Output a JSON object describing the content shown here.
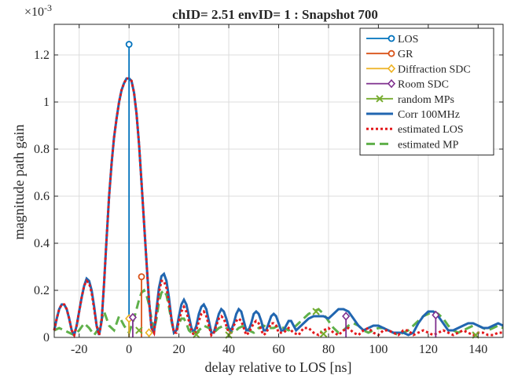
{
  "chart_data": {
    "type": "line",
    "title": "chID= 2.51 envID= 1 : Snapshot 700",
    "xlabel": "delay relative to LOS [ns]",
    "ylabel": "magnitude path gain",
    "y_exponent_label": "×10",
    "y_exponent_power": "-3",
    "xlim": [
      -30,
      150
    ],
    "ylim": [
      0,
      0.00133
    ],
    "grid": true,
    "legend_position": "top-right",
    "xticks": [
      -20,
      0,
      20,
      40,
      60,
      80,
      100,
      120,
      140
    ],
    "xtick_labels": [
      "-20",
      "0",
      "20",
      "40",
      "60",
      "80",
      "100",
      "120",
      "140"
    ],
    "yticks": [
      0,
      0.0002,
      0.0004,
      0.0006,
      0.0008,
      0.001,
      0.0012
    ],
    "ytick_labels": [
      "0",
      "0.2",
      "0.4",
      "0.6",
      "0.8",
      "1",
      "1.2"
    ],
    "colors": {
      "los": "#0072BD",
      "gr": "#D95319",
      "diffraction": "#EDB120",
      "room": "#7E2F8E",
      "random": "#77AC30",
      "corr": "#2166b0",
      "est_los": "#e3191c",
      "est_mp": "#5fb04a"
    },
    "legend": [
      {
        "key": "los",
        "label": "LOS",
        "style": "stem-o"
      },
      {
        "key": "gr",
        "label": "GR",
        "style": "stem-o"
      },
      {
        "key": "diffraction",
        "label": "Diffraction SDC",
        "style": "stem-diamond"
      },
      {
        "key": "room",
        "label": "Room SDC",
        "style": "stem-diamond"
      },
      {
        "key": "random",
        "label": "random MPs",
        "style": "x"
      },
      {
        "key": "corr",
        "label": "Corr 100MHz",
        "style": "solid"
      },
      {
        "key": "est_los",
        "label": "estimated LOS",
        "style": "dotted"
      },
      {
        "key": "est_mp",
        "label": "estimated MP",
        "style": "dashed"
      }
    ],
    "stems": [
      {
        "series": "los",
        "marker": "o",
        "x": 0,
        "y": 0.001245
      },
      {
        "series": "gr",
        "marker": "o",
        "x": 5,
        "y": 0.000258
      },
      {
        "series": "diffraction",
        "marker": "diamond",
        "x": 0,
        "y": 8e-05
      },
      {
        "series": "diffraction",
        "marker": "diamond",
        "x": 8,
        "y": 2e-05
      },
      {
        "series": "room",
        "marker": "diamond",
        "x": 1.5,
        "y": 8.5e-05
      },
      {
        "series": "room",
        "marker": "diamond",
        "x": 87,
        "y": 9e-05
      },
      {
        "series": "room",
        "marker": "diamond",
        "x": 123,
        "y": 9.5e-05
      }
    ],
    "random_mps": [
      {
        "x": 4,
        "y": 3e-05
      },
      {
        "x": 27,
        "y": 1.2e-05
      },
      {
        "x": 40,
        "y": 1e-05
      },
      {
        "x": 75,
        "y": 0.00011
      },
      {
        "x": 78,
        "y": 1.5e-05
      },
      {
        "x": 139,
        "y": 1e-05
      }
    ],
    "corr_curve": [
      [
        -30,
        3e-05
      ],
      [
        -29,
        8e-05
      ],
      [
        -28,
        0.00012
      ],
      [
        -27,
        0.00014
      ],
      [
        -26,
        0.00014
      ],
      [
        -25,
        0.00012
      ],
      [
        -24,
        8e-05
      ],
      [
        -23,
        3e-05
      ],
      [
        -22,
        1e-05
      ],
      [
        -21,
        5e-05
      ],
      [
        -20,
        0.00011
      ],
      [
        -19,
        0.00017
      ],
      [
        -18,
        0.00022
      ],
      [
        -17,
        0.00025
      ],
      [
        -16,
        0.00024
      ],
      [
        -15,
        0.0002
      ],
      [
        -14,
        0.00013
      ],
      [
        -13,
        5e-05
      ],
      [
        -12,
        1e-05
      ],
      [
        -11,
        7e-05
      ],
      [
        -10,
        0.00023
      ],
      [
        -9,
        0.00042
      ],
      [
        -8,
        0.0006
      ],
      [
        -7,
        0.00074
      ],
      [
        -6,
        0.00085
      ],
      [
        -5,
        0.00093
      ],
      [
        -4,
        0.001
      ],
      [
        -3,
        0.00105
      ],
      [
        -2,
        0.00108
      ],
      [
        -1,
        0.0011
      ],
      [
        0,
        0.0011
      ],
      [
        1,
        0.00109
      ],
      [
        2,
        0.00104
      ],
      [
        3,
        0.00095
      ],
      [
        4,
        0.00082
      ],
      [
        5,
        0.00066
      ],
      [
        6,
        0.00049
      ],
      [
        7,
        0.00032
      ],
      [
        8,
        0.00016
      ],
      [
        9,
        4e-05
      ],
      [
        10,
        2e-05
      ],
      [
        11,
        0.00012
      ],
      [
        12,
        0.00021
      ],
      [
        13,
        0.00026
      ],
      [
        14,
        0.00027
      ],
      [
        15,
        0.00024
      ],
      [
        16,
        0.00017
      ],
      [
        17,
        8e-05
      ],
      [
        18,
        2e-05
      ],
      [
        19,
        3e-05
      ],
      [
        20,
        9e-05
      ],
      [
        21,
        0.00014
      ],
      [
        22,
        0.00016
      ],
      [
        23,
        0.00014
      ],
      [
        24,
        9e-05
      ],
      [
        25,
        4e-05
      ],
      [
        26,
        2e-05
      ],
      [
        27,
        5e-05
      ],
      [
        28,
        0.0001
      ],
      [
        29,
        0.00013
      ],
      [
        30,
        0.00014
      ],
      [
        31,
        0.00012
      ],
      [
        32,
        7e-05
      ],
      [
        33,
        2e-05
      ],
      [
        34,
        2e-05
      ],
      [
        35,
        6e-05
      ],
      [
        36,
        0.0001
      ],
      [
        37,
        0.00012
      ],
      [
        38,
        0.00011
      ],
      [
        39,
        8e-05
      ],
      [
        40,
        4e-05
      ],
      [
        41,
        3e-05
      ],
      [
        42,
        6e-05
      ],
      [
        43,
        0.0001
      ],
      [
        44,
        0.00012
      ],
      [
        45,
        0.00011
      ],
      [
        46,
        7e-05
      ],
      [
        47,
        3e-05
      ],
      [
        48,
        3e-05
      ],
      [
        49,
        6e-05
      ],
      [
        50,
        0.0001
      ],
      [
        51,
        0.00011
      ],
      [
        52,
        0.0001
      ],
      [
        53,
        7e-05
      ],
      [
        54,
        3e-05
      ],
      [
        55,
        3e-05
      ],
      [
        56,
        6e-05
      ],
      [
        57,
        9e-05
      ],
      [
        58,
        0.0001
      ],
      [
        59,
        9e-05
      ],
      [
        60,
        6e-05
      ],
      [
        61,
        3e-05
      ],
      [
        62,
        3e-05
      ],
      [
        63,
        5e-05
      ],
      [
        64,
        7e-05
      ],
      [
        65,
        7e-05
      ],
      [
        66,
        5e-05
      ],
      [
        67,
        3e-05
      ],
      [
        68,
        4e-05
      ],
      [
        70,
        6e-05
      ],
      [
        72,
        8e-05
      ],
      [
        74,
        9e-05
      ],
      [
        76,
        9e-05
      ],
      [
        78,
        9e-05
      ],
      [
        80,
        8e-05
      ],
      [
        82,
        0.0001
      ],
      [
        84,
        0.00012
      ],
      [
        86,
        0.00012
      ],
      [
        88,
        0.00011
      ],
      [
        90,
        8e-05
      ],
      [
        92,
        5e-05
      ],
      [
        94,
        3e-05
      ],
      [
        96,
        4e-05
      ],
      [
        98,
        5e-05
      ],
      [
        100,
        5e-05
      ],
      [
        102,
        4e-05
      ],
      [
        104,
        3e-05
      ],
      [
        106,
        2e-05
      ],
      [
        108,
        2e-05
      ],
      [
        110,
        2e-05
      ],
      [
        112,
        1e-05
      ],
      [
        114,
        2e-05
      ],
      [
        116,
        6e-05
      ],
      [
        118,
        9e-05
      ],
      [
        120,
        0.00011
      ],
      [
        122,
        0.00011
      ],
      [
        124,
        9e-05
      ],
      [
        126,
        6e-05
      ],
      [
        128,
        3e-05
      ],
      [
        130,
        3e-05
      ],
      [
        132,
        4e-05
      ],
      [
        134,
        5e-05
      ],
      [
        136,
        6e-05
      ],
      [
        138,
        6e-05
      ],
      [
        140,
        5e-05
      ],
      [
        142,
        4e-05
      ],
      [
        144,
        4e-05
      ],
      [
        146,
        5e-05
      ],
      [
        148,
        6e-05
      ],
      [
        150,
        5e-05
      ]
    ],
    "est_los_curve": [
      [
        -30,
        3e-05
      ],
      [
        -29,
        8e-05
      ],
      [
        -28,
        0.00012
      ],
      [
        -27,
        0.00014
      ],
      [
        -26,
        0.00014
      ],
      [
        -25,
        0.00012
      ],
      [
        -24,
        8e-05
      ],
      [
        -23,
        3e-05
      ],
      [
        -22,
        1e-05
      ],
      [
        -21,
        5e-05
      ],
      [
        -20,
        0.00011
      ],
      [
        -19,
        0.00017
      ],
      [
        -18,
        0.00022
      ],
      [
        -17,
        0.00024
      ],
      [
        -16,
        0.00023
      ],
      [
        -15,
        0.00019
      ],
      [
        -14,
        0.00012
      ],
      [
        -13,
        5e-05
      ],
      [
        -12,
        1e-05
      ],
      [
        -11,
        7e-05
      ],
      [
        -10,
        0.00023
      ],
      [
        -9,
        0.00042
      ],
      [
        -8,
        0.0006
      ],
      [
        -7,
        0.00074
      ],
      [
        -6,
        0.00085
      ],
      [
        -5,
        0.00093
      ],
      [
        -4,
        0.001
      ],
      [
        -3,
        0.00105
      ],
      [
        -2,
        0.00108
      ],
      [
        -1,
        0.0011
      ],
      [
        0,
        0.0011
      ],
      [
        1,
        0.00109
      ],
      [
        2,
        0.00104
      ],
      [
        3,
        0.00095
      ],
      [
        4,
        0.00082
      ],
      [
        5,
        0.00066
      ],
      [
        6,
        0.00049
      ],
      [
        7,
        0.00032
      ],
      [
        8,
        0.00016
      ],
      [
        9,
        4e-05
      ],
      [
        10,
        2e-05
      ],
      [
        11,
        0.00011
      ],
      [
        12,
        0.00019
      ],
      [
        13,
        0.00024
      ],
      [
        14,
        0.00024
      ],
      [
        15,
        0.00021
      ],
      [
        16,
        0.00015
      ],
      [
        17,
        8e-05
      ],
      [
        18,
        2e-05
      ],
      [
        19,
        2e-05
      ],
      [
        20,
        7e-05
      ],
      [
        21,
        0.00011
      ],
      [
        22,
        0.00013
      ],
      [
        23,
        0.00011
      ],
      [
        24,
        7e-05
      ],
      [
        25,
        3e-05
      ],
      [
        26,
        1e-05
      ],
      [
        27,
        3e-05
      ],
      [
        28,
        7e-05
      ],
      [
        29,
        0.0001
      ],
      [
        30,
        0.00011
      ],
      [
        31,
        9e-05
      ],
      [
        32,
        5e-05
      ],
      [
        33,
        1e-05
      ],
      [
        34,
        2e-05
      ],
      [
        35,
        5e-05
      ],
      [
        36,
        8e-05
      ],
      [
        37,
        9e-05
      ],
      [
        38,
        8e-05
      ],
      [
        39,
        5e-05
      ],
      [
        40,
        2e-05
      ],
      [
        41,
        2e-05
      ],
      [
        42,
        5e-05
      ],
      [
        43,
        7e-05
      ],
      [
        44,
        8e-05
      ],
      [
        45,
        7e-05
      ],
      [
        46,
        4e-05
      ],
      [
        47,
        1e-05
      ],
      [
        48,
        2e-05
      ],
      [
        49,
        4e-05
      ],
      [
        50,
        6e-05
      ],
      [
        51,
        7e-05
      ],
      [
        52,
        6e-05
      ],
      [
        53,
        3e-05
      ],
      [
        54,
        1e-05
      ],
      [
        55,
        2e-05
      ],
      [
        56,
        4e-05
      ],
      [
        57,
        6e-05
      ],
      [
        58,
        6e-05
      ],
      [
        59,
        5e-05
      ],
      [
        60,
        2e-05
      ],
      [
        62,
        2e-05
      ],
      [
        64,
        4e-05
      ],
      [
        66,
        2e-05
      ],
      [
        68,
        1e-05
      ],
      [
        70,
        4e-05
      ],
      [
        72,
        4e-05
      ],
      [
        74,
        2e-05
      ],
      [
        76,
        1e-05
      ],
      [
        78,
        3e-05
      ],
      [
        80,
        4e-05
      ],
      [
        82,
        2e-05
      ],
      [
        84,
        1e-05
      ],
      [
        86,
        3e-05
      ],
      [
        88,
        4e-05
      ],
      [
        90,
        2e-05
      ],
      [
        92,
        1e-05
      ],
      [
        94,
        3e-05
      ],
      [
        96,
        4e-05
      ],
      [
        98,
        2e-05
      ],
      [
        100,
        1e-05
      ],
      [
        102,
        3e-05
      ],
      [
        104,
        3e-05
      ],
      [
        106,
        2e-05
      ],
      [
        108,
        1e-05
      ],
      [
        110,
        3e-05
      ],
      [
        112,
        3e-05
      ],
      [
        114,
        1e-05
      ],
      [
        116,
        2e-05
      ],
      [
        118,
        3e-05
      ],
      [
        120,
        2e-05
      ],
      [
        122,
        1e-05
      ],
      [
        124,
        2e-05
      ],
      [
        126,
        3e-05
      ],
      [
        128,
        2e-05
      ],
      [
        130,
        1e-05
      ],
      [
        132,
        2e-05
      ],
      [
        134,
        3e-05
      ],
      [
        136,
        2e-05
      ],
      [
        138,
        1e-05
      ],
      [
        140,
        2e-05
      ],
      [
        142,
        2e-05
      ],
      [
        144,
        1e-05
      ],
      [
        146,
        1e-05
      ],
      [
        148,
        2e-05
      ],
      [
        150,
        2e-05
      ]
    ],
    "est_mp_curve": [
      [
        -30,
        3e-05
      ],
      [
        -28,
        4e-05
      ],
      [
        -26,
        3e-05
      ],
      [
        -24,
        2e-05
      ],
      [
        -22,
        1e-05
      ],
      [
        -20,
        3e-05
      ],
      [
        -18,
        6e-05
      ],
      [
        -16,
        4e-05
      ],
      [
        -14,
        1e-05
      ],
      [
        -12,
        4e-05
      ],
      [
        -10,
        0.00011
      ],
      [
        -8,
        5e-05
      ],
      [
        -6,
        3e-05
      ],
      [
        -4,
        9e-05
      ],
      [
        -2,
        5e-05
      ],
      [
        0,
        2e-05
      ],
      [
        2,
        8e-05
      ],
      [
        4,
        0.00016
      ],
      [
        5,
        0.00019
      ],
      [
        6,
        0.0002
      ],
      [
        7,
        0.00018
      ],
      [
        8,
        0.00014
      ],
      [
        9,
        8e-05
      ],
      [
        10,
        3e-05
      ],
      [
        11,
        8e-05
      ],
      [
        12,
        0.00015
      ],
      [
        13,
        0.00019
      ],
      [
        14,
        0.0002
      ],
      [
        15,
        0.00018
      ],
      [
        16,
        0.00013
      ],
      [
        17,
        7e-05
      ],
      [
        18,
        2e-05
      ],
      [
        19,
        3e-05
      ],
      [
        20,
        6e-05
      ],
      [
        21,
        8e-05
      ],
      [
        22,
        8e-05
      ],
      [
        23,
        6e-05
      ],
      [
        24,
        3e-05
      ],
      [
        26,
        1e-05
      ],
      [
        28,
        3e-05
      ],
      [
        30,
        5e-05
      ],
      [
        32,
        4e-05
      ],
      [
        34,
        2e-05
      ],
      [
        36,
        4e-05
      ],
      [
        38,
        5e-05
      ],
      [
        40,
        3e-05
      ],
      [
        42,
        2e-05
      ],
      [
        44,
        4e-05
      ],
      [
        46,
        5e-05
      ],
      [
        48,
        3e-05
      ],
      [
        50,
        2e-05
      ],
      [
        52,
        4e-05
      ],
      [
        54,
        5e-05
      ],
      [
        56,
        4e-05
      ],
      [
        58,
        4e-05
      ],
      [
        60,
        5e-05
      ],
      [
        62,
        4e-05
      ],
      [
        64,
        3e-05
      ],
      [
        66,
        4e-05
      ],
      [
        68,
        6e-05
      ],
      [
        70,
        8e-05
      ],
      [
        72,
        0.0001
      ],
      [
        74,
        0.00011
      ],
      [
        76,
        0.00012
      ],
      [
        78,
        0.0001
      ],
      [
        80,
        7e-05
      ],
      [
        82,
        4e-05
      ],
      [
        84,
        2e-05
      ],
      [
        86,
        3e-05
      ],
      [
        88,
        5e-05
      ],
      [
        90,
        6e-05
      ],
      [
        92,
        5e-05
      ],
      [
        94,
        3e-05
      ],
      [
        96,
        2e-05
      ],
      [
        98,
        3e-05
      ],
      [
        100,
        4e-05
      ],
      [
        102,
        4e-05
      ],
      [
        104,
        3e-05
      ],
      [
        106,
        2e-05
      ],
      [
        108,
        1e-05
      ],
      [
        110,
        2e-05
      ],
      [
        112,
        3e-05
      ],
      [
        114,
        5e-05
      ],
      [
        116,
        7e-05
      ],
      [
        118,
        9e-05
      ],
      [
        120,
        0.0001
      ],
      [
        122,
        0.00011
      ],
      [
        124,
        0.0001
      ],
      [
        126,
        8e-05
      ],
      [
        128,
        5e-05
      ],
      [
        130,
        3e-05
      ],
      [
        132,
        2e-05
      ],
      [
        134,
        3e-05
      ],
      [
        136,
        4e-05
      ],
      [
        138,
        5e-05
      ],
      [
        140,
        5e-05
      ],
      [
        142,
        4e-05
      ],
      [
        144,
        3e-05
      ],
      [
        146,
        4e-05
      ],
      [
        148,
        5e-05
      ],
      [
        150,
        4e-05
      ]
    ]
  }
}
